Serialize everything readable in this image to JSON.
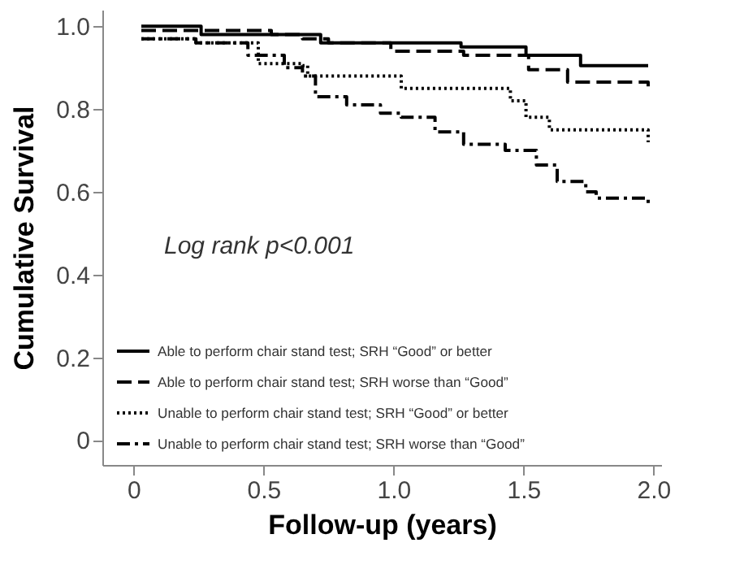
{
  "chart_data": {
    "type": "step",
    "xlabel": "Follow-up (years)",
    "ylabel": "Cumulative Survival",
    "annotations": [
      "Log rank p<0.001"
    ],
    "xlim": [
      -0.12,
      2.03
    ],
    "ylim": [
      -0.06,
      1.04
    ],
    "xticks": [
      0,
      0.5,
      {
        "value": 1,
        "label": "1.0"
      },
      1.5,
      {
        "value": 2,
        "label": "2.0"
      }
    ],
    "yticks": [
      0,
      0.2,
      0.4,
      0.6,
      0.8,
      {
        "value": 1,
        "label": "1.0"
      }
    ],
    "grid": false,
    "legend": "bottom left",
    "marker": "none",
    "series": [
      {
        "name": "Able to perform chair stand test; SRH “Good” or better",
        "color": "#000000",
        "line_style": "solid",
        "x": [
          0.03,
          0.26,
          0.72,
          1.26,
          1.51,
          1.72,
          1.98
        ],
        "values": [
          1.0,
          0.98,
          0.96,
          0.95,
          0.93,
          0.905,
          0.905
        ]
      },
      {
        "name": "Able to perform chair stand test; SRH worse than “Good”",
        "color": "#000000",
        "line_style": "dashed",
        "x": [
          0.03,
          0.53,
          0.65,
          0.75,
          0.99,
          1.27,
          1.52,
          1.67,
          1.98
        ],
        "values": [
          0.99,
          0.98,
          0.97,
          0.96,
          0.94,
          0.93,
          0.895,
          0.865,
          0.855
        ]
      },
      {
        "name": "Unable to perform chair stand test; SRH “Good” or better",
        "color": "#000000",
        "line_style": "dotted",
        "x": [
          0.03,
          0.24,
          0.48,
          0.65,
          0.67,
          1.03,
          1.45,
          1.51,
          1.6,
          1.98
        ],
        "values": [
          0.97,
          0.96,
          0.91,
          0.905,
          0.88,
          0.85,
          0.82,
          0.78,
          0.75,
          0.72
        ]
      },
      {
        "name": "Unable to perform chair stand test; SRH worse than “Good”",
        "color": "#000000",
        "line_style": "dashdot",
        "x": [
          0.03,
          0.24,
          0.44,
          0.58,
          0.65,
          0.7,
          0.82,
          0.95,
          1.03,
          1.16,
          1.27,
          1.43,
          1.55,
          1.63,
          1.74,
          1.78,
          1.98
        ],
        "values": [
          0.97,
          0.96,
          0.93,
          0.9,
          0.88,
          0.83,
          0.81,
          0.79,
          0.78,
          0.745,
          0.715,
          0.7,
          0.665,
          0.625,
          0.6,
          0.585,
          0.565
        ]
      }
    ]
  }
}
